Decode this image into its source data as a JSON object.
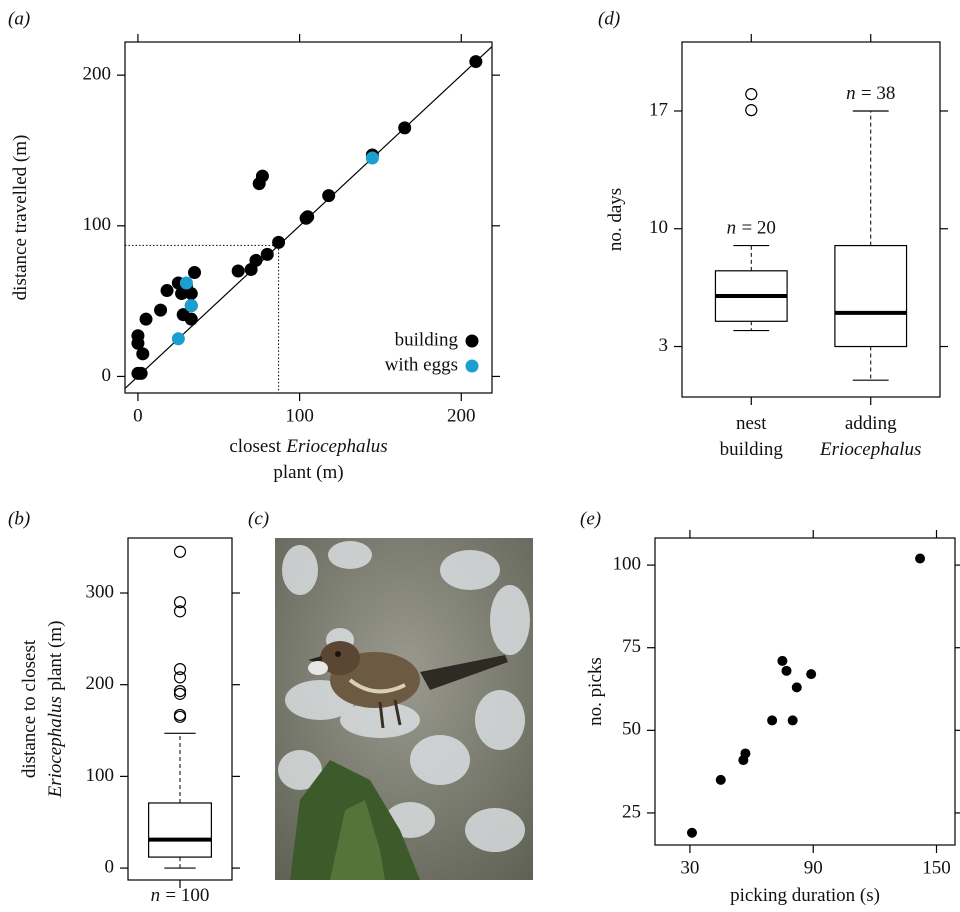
{
  "chart_data": [
    {
      "type": "scatter",
      "panel": "(a)",
      "xlabel": [
        [
          {
            "text": "closest"
          },
          {
            "text": "Eriocephalus",
            "style": "italic"
          }
        ],
        [
          {
            "text": "plant (m)"
          }
        ]
      ],
      "ylabel": [
        [
          {
            "text": "distance travelled (m)"
          }
        ]
      ],
      "xlim": [
        -8,
        219
      ],
      "ylim": [
        -11,
        222
      ],
      "xticks": [
        0,
        100,
        200
      ],
      "yticks": [
        0,
        100,
        200
      ],
      "identity_line": true,
      "ref_x": 87,
      "ref_y": 87,
      "legend": "lower right",
      "series": [
        {
          "name": "building",
          "color": "#000000",
          "x": [
            0,
            2,
            0,
            0,
            3,
            5,
            14,
            18,
            25,
            27,
            28,
            30,
            33,
            33,
            33,
            35,
            62,
            70,
            73,
            75,
            77,
            80,
            87,
            104,
            105,
            118,
            145,
            165,
            209
          ],
          "y": [
            2,
            2,
            27,
            22,
            15,
            38,
            44,
            57,
            62,
            55,
            41,
            60,
            47,
            38,
            55,
            69,
            70,
            71,
            77,
            128,
            133,
            81,
            89,
            105,
            106,
            120,
            147,
            165,
            209
          ]
        },
        {
          "name": "with eggs",
          "color": "#1a9fd0",
          "x": [
            25,
            30,
            33,
            145
          ],
          "y": [
            25,
            62,
            47,
            145
          ]
        }
      ]
    },
    {
      "type": "box",
      "panel": "(d)",
      "ylabel": [
        [
          {
            "text": "no. days"
          }
        ]
      ],
      "ylim": [
        0,
        21.1
      ],
      "yticks": [
        3,
        10,
        17
      ],
      "categories": [
        [
          [
            {
              "text": "nest"
            }
          ],
          [
            {
              "text": "building"
            }
          ]
        ],
        [
          [
            {
              "text": "adding"
            }
          ],
          [
            {
              "text": "Eriocephalus",
              "style": "italic"
            }
          ]
        ]
      ],
      "boxes": [
        {
          "whislo": 3.95,
          "q1": 4.5,
          "med": 6,
          "q3": 7.5,
          "whishi": 9,
          "fliers": [
            18,
            17.05
          ],
          "n_label": [
            [
              {
                "text": "n",
                "style": "italic"
              },
              {
                "text": "= 20"
              }
            ]
          ]
        },
        {
          "whislo": 1,
          "q1": 3,
          "med": 5,
          "q3": 9,
          "whishi": 17,
          "fliers": [],
          "n_label": [
            [
              {
                "text": "n",
                "style": "italic"
              },
              {
                "text": "= 38"
              }
            ]
          ]
        }
      ]
    },
    {
      "type": "box",
      "panel": "(b)",
      "ylabel": [
        [
          {
            "text": "distance to closest"
          }
        ],
        [
          {
            "text": "Eriocephalus",
            "style": "italic"
          },
          {
            "text": "plant (m)"
          }
        ]
      ],
      "ylim": [
        -13,
        360
      ],
      "yticks": [
        0,
        100,
        200,
        300
      ],
      "categories": [
        [
          [
            {
              "text": "n",
              "style": "italic"
            },
            {
              "text": "= 100"
            }
          ]
        ]
      ],
      "boxes": [
        {
          "whislo": 0,
          "q1": 12,
          "med": 31,
          "q3": 71,
          "whishi": 147,
          "fliers": [
            345,
            290,
            280,
            217,
            208,
            193,
            190,
            167,
            165
          ]
        }
      ]
    },
    {
      "type": "image",
      "panel": "(c)"
    },
    {
      "type": "scatter",
      "panel": "(e)",
      "xlabel": [
        [
          {
            "text": "picking duration (s)"
          }
        ]
      ],
      "ylabel": [
        [
          {
            "text": "no. picks"
          }
        ]
      ],
      "xlim": [
        13,
        159
      ],
      "ylim": [
        15.3,
        108.2
      ],
      "xticks": [
        30,
        90,
        150
      ],
      "yticks": [
        25,
        50,
        75,
        100
      ],
      "series": [
        {
          "color": "#000000",
          "x": [
            31,
            45,
            56,
            57,
            70,
            75,
            77,
            80,
            82,
            89,
            142
          ],
          "y": [
            19,
            35,
            41,
            43,
            53,
            71,
            68,
            53,
            63,
            67,
            102
          ]
        }
      ]
    }
  ]
}
